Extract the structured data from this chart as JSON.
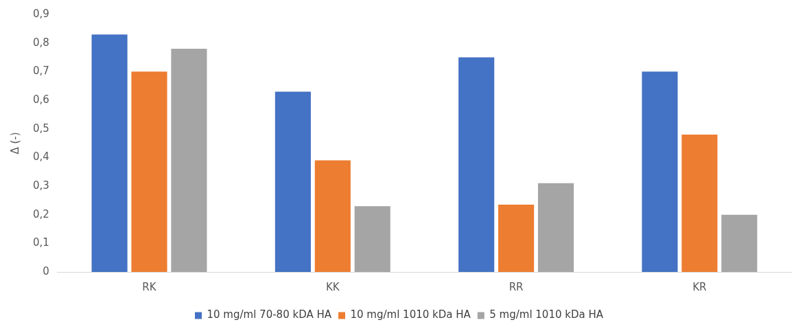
{
  "chart_data": {
    "type": "bar",
    "ylabel": "Δ (-)",
    "categories": [
      "RK",
      "KK",
      "RR",
      "KR"
    ],
    "series": [
      {
        "name": "10 mg/ml 70-80 kDA HA",
        "color": "#4472c4",
        "values": [
          0.83,
          0.63,
          0.75,
          0.7
        ]
      },
      {
        "name": "10 mg/ml 1010 kDa HA",
        "color": "#ed7d31",
        "values": [
          0.7,
          0.39,
          0.235,
          0.48
        ]
      },
      {
        "name": "5 mg/ml 1010 kDa HA",
        "color": "#a5a5a5",
        "values": [
          0.78,
          0.23,
          0.31,
          0.2
        ]
      }
    ],
    "ylim": [
      0,
      0.9
    ],
    "yticks": [
      0,
      {
        "value": 0.1,
        "label": "0,1"
      },
      {
        "value": 0.2,
        "label": "0,2"
      },
      {
        "value": 0.3,
        "label": "0,3"
      },
      {
        "value": 0.4,
        "label": "0,4"
      },
      {
        "value": 0.5,
        "label": "0,5"
      },
      {
        "value": 0.6,
        "label": "0,6"
      },
      {
        "value": 0.7,
        "label": "0,7"
      },
      {
        "value": 0.8,
        "label": "0,8"
      },
      {
        "value": 0.9,
        "label": "0,9"
      }
    ],
    "grid": false,
    "legend": "bottom"
  }
}
